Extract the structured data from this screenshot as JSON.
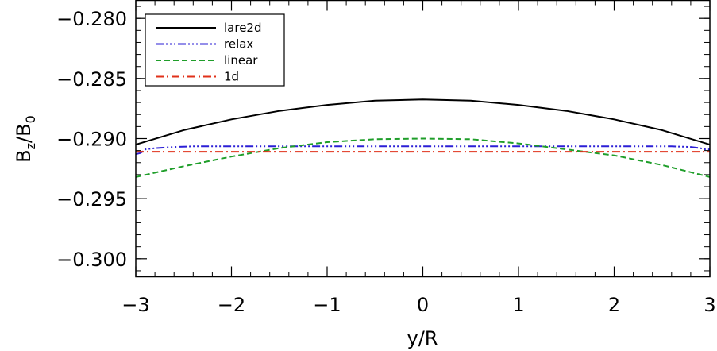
{
  "chart_data": {
    "type": "line",
    "xlabel": "y/R",
    "ylabel": {
      "base": "B",
      "sub1": "z",
      "sep": "/B",
      "sub2": "0"
    },
    "xlim": [
      -3,
      3
    ],
    "ylim": [
      -0.3015,
      -0.2785
    ],
    "xticks": [
      -3,
      -2,
      -1,
      0,
      1,
      2,
      3
    ],
    "xtick_labels": [
      "−3",
      "−2",
      "−1",
      "0",
      "1",
      "2",
      "3"
    ],
    "yticks": [
      -0.3,
      -0.295,
      -0.29,
      -0.285,
      -0.28
    ],
    "ytick_labels": [
      "−0.300",
      "−0.295",
      "−0.290",
      "−0.285",
      "−0.280"
    ],
    "grid": false,
    "legend_position": "top-left",
    "series": [
      {
        "name": "lare2d",
        "color": "#000000",
        "dash": "",
        "x": [
          -3,
          -2.5,
          -2,
          -1.5,
          -1,
          -0.5,
          0,
          0.5,
          1,
          1.5,
          2,
          2.5,
          3
        ],
        "y": [
          -0.2905,
          -0.2893,
          -0.2884,
          -0.2877,
          -0.2872,
          -0.28685,
          -0.28675,
          -0.28685,
          -0.2872,
          -0.2877,
          -0.2884,
          -0.2893,
          -0.2905
        ]
      },
      {
        "name": "relax",
        "color": "#2b1fd6",
        "dash": "10,3,2,3,2,3,2,3",
        "x": [
          -3,
          -2.95,
          -2.9,
          -2.8,
          -2.6,
          -2.4,
          -2,
          -1,
          0,
          1,
          2,
          2.4,
          2.6,
          2.8,
          2.9,
          2.95,
          3
        ],
        "y": [
          -0.2913,
          -0.2912,
          -0.2909,
          -0.2908,
          -0.2907,
          -0.29065,
          -0.29065,
          -0.29065,
          -0.29065,
          -0.29065,
          -0.29065,
          -0.29065,
          -0.29065,
          -0.2907,
          -0.2908,
          -0.2909,
          -0.2909
        ]
      },
      {
        "name": "linear",
        "color": "#1f9e2a",
        "dash": "7,4",
        "x": [
          -3,
          -2.5,
          -2,
          -1.5,
          -1,
          -0.5,
          0,
          0.5,
          1,
          1.5,
          2,
          2.5,
          3
        ],
        "y": [
          -0.2932,
          -0.2923,
          -0.2915,
          -0.2908,
          -0.2903,
          -0.29005,
          -0.29,
          -0.29005,
          -0.2904,
          -0.2909,
          -0.2914,
          -0.2922,
          -0.2932
        ]
      },
      {
        "name": "1d",
        "color": "#e0311a",
        "dash": "10,4,2,4",
        "x": [
          -3,
          3
        ],
        "y": [
          -0.2911,
          -0.2911
        ]
      }
    ]
  }
}
